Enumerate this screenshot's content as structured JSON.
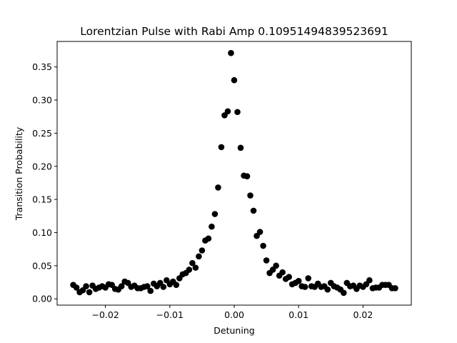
{
  "chart_data": {
    "type": "scatter",
    "title": "Lorentzian Pulse with Rabi Amp 0.10951494839523691",
    "xlabel": "Detuning",
    "ylabel": "Transition Probability",
    "xlim": [
      -0.0275,
      0.0275
    ],
    "ylim": [
      -0.0095,
      0.3885
    ],
    "xticks": [
      -0.02,
      -0.01,
      0.0,
      0.01,
      0.02
    ],
    "xtick_labels": [
      "−0.02",
      "−0.01",
      "0.00",
      "0.01",
      "0.02"
    ],
    "yticks": [
      0.0,
      0.05,
      0.1,
      0.15,
      0.2,
      0.25,
      0.3,
      0.35
    ],
    "ytick_labels": [
      "0.00",
      "0.05",
      "0.10",
      "0.15",
      "0.20",
      "0.25",
      "0.30",
      "0.35"
    ],
    "grid": false,
    "marker_color": "#000000",
    "series": [
      {
        "x": [
          -0.025,
          -0.0245,
          -0.024,
          -0.0235,
          -0.023,
          -0.0225,
          -0.022,
          -0.0215,
          -0.021,
          -0.0205,
          -0.02,
          -0.0195,
          -0.019,
          -0.0185,
          -0.018,
          -0.0175,
          -0.017,
          -0.0165,
          -0.016,
          -0.0155,
          -0.015,
          -0.0145,
          -0.014,
          -0.0135,
          -0.013,
          -0.0125,
          -0.012,
          -0.0115,
          -0.011,
          -0.0105,
          -0.01,
          -0.0095,
          -0.009,
          -0.0085,
          -0.008,
          -0.0075,
          -0.007,
          -0.0065,
          -0.006,
          -0.0055,
          -0.005,
          -0.0045,
          -0.004,
          -0.0035,
          -0.003,
          -0.0025,
          -0.002,
          -0.0015,
          -0.001,
          -0.0005,
          0.0,
          0.0005,
          0.001,
          0.0015,
          0.002,
          0.0025,
          0.003,
          0.0035,
          0.004,
          0.0045,
          0.005,
          0.0055,
          0.006,
          0.0065,
          0.007,
          0.0075,
          0.008,
          0.0085,
          0.009,
          0.0095,
          0.01,
          0.0105,
          0.011,
          0.0115,
          0.012,
          0.0125,
          0.013,
          0.0135,
          0.014,
          0.0145,
          0.015,
          0.0155,
          0.016,
          0.0165,
          0.017,
          0.0175,
          0.018,
          0.0185,
          0.019,
          0.0195,
          0.02,
          0.0205,
          0.021,
          0.0215,
          0.022,
          0.0225,
          0.023,
          0.0235,
          0.024,
          0.0245,
          0.025
        ],
        "y": [
          0.021,
          0.017,
          0.01,
          0.013,
          0.019,
          0.01,
          0.02,
          0.015,
          0.017,
          0.019,
          0.017,
          0.022,
          0.021,
          0.015,
          0.014,
          0.019,
          0.026,
          0.024,
          0.018,
          0.02,
          0.016,
          0.016,
          0.018,
          0.019,
          0.012,
          0.023,
          0.019,
          0.024,
          0.018,
          0.028,
          0.022,
          0.026,
          0.021,
          0.031,
          0.037,
          0.039,
          0.044,
          0.054,
          0.047,
          0.064,
          0.073,
          0.088,
          0.091,
          0.109,
          0.128,
          0.168,
          0.229,
          0.277,
          0.283,
          0.371,
          0.33,
          0.282,
          0.228,
          0.186,
          0.185,
          0.156,
          0.133,
          0.095,
          0.101,
          0.08,
          0.058,
          0.039,
          0.044,
          0.05,
          0.035,
          0.04,
          0.03,
          0.033,
          0.022,
          0.024,
          0.027,
          0.019,
          0.018,
          0.031,
          0.019,
          0.018,
          0.023,
          0.018,
          0.019,
          0.014,
          0.024,
          0.019,
          0.017,
          0.014,
          0.009,
          0.024,
          0.019,
          0.02,
          0.015,
          0.02,
          0.018,
          0.022,
          0.028,
          0.016,
          0.017,
          0.017,
          0.021,
          0.021,
          0.021,
          0.016,
          0.016
        ]
      }
    ]
  }
}
